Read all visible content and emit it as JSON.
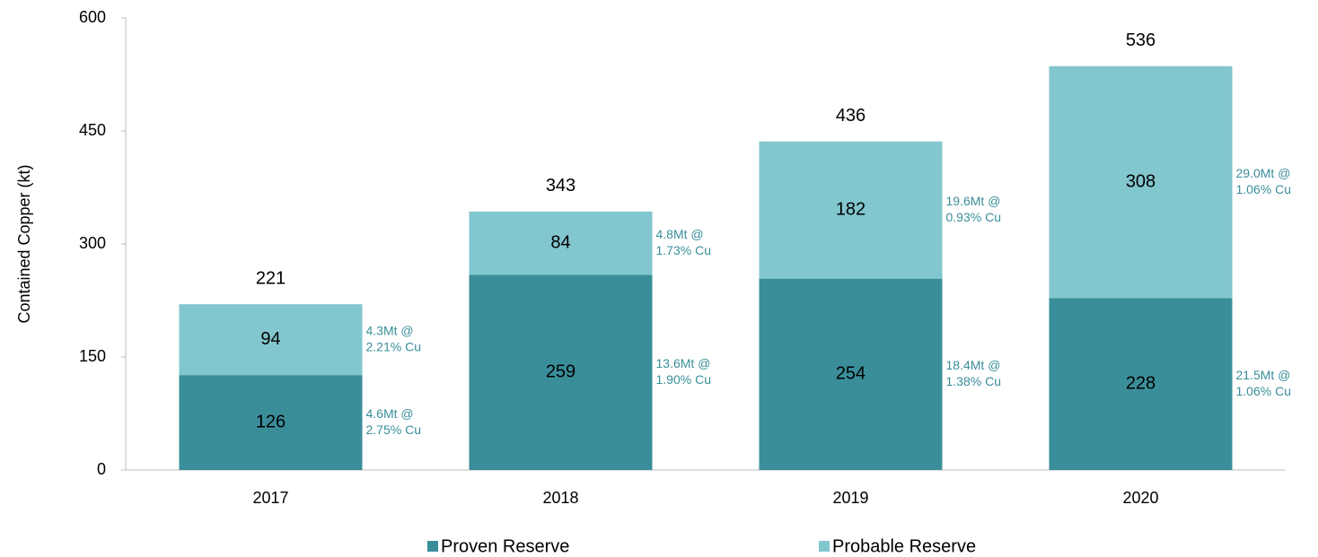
{
  "chart_data": {
    "type": "stacked_bar",
    "y_label": "Contained Copper (kt)",
    "categories": [
      "2017",
      "2018",
      "2019",
      "2020"
    ],
    "series": [
      {
        "name": "Proven Reserve",
        "color": "#3a8e9a",
        "values": [
          126,
          259,
          254,
          228
        ],
        "annotations": [
          [
            "4.6Mt @",
            "2.75% Cu"
          ],
          [
            "13.6Mt @",
            "1.90% Cu"
          ],
          [
            "18.4Mt @",
            "1.38% Cu"
          ],
          [
            "21.5Mt @",
            "1.06% Cu"
          ]
        ]
      },
      {
        "name": "Probable Reserve",
        "color": "#82c6ce",
        "values": [
          94,
          84,
          182,
          308
        ],
        "annotations": [
          [
            "4.3Mt @",
            "2.21% Cu"
          ],
          [
            "4.8Mt @",
            "1.73% Cu"
          ],
          [
            "19.6Mt @",
            "0.93% Cu"
          ],
          [
            "29.0Mt @",
            "1.06% Cu"
          ]
        ]
      }
    ],
    "totals": [
      221,
      343,
      436,
      536
    ],
    "ylim": [
      0,
      600
    ],
    "yticks": [
      0,
      150,
      300,
      450,
      600
    ],
    "annotation_color": "#3a8e9a",
    "legend": "bottom"
  }
}
